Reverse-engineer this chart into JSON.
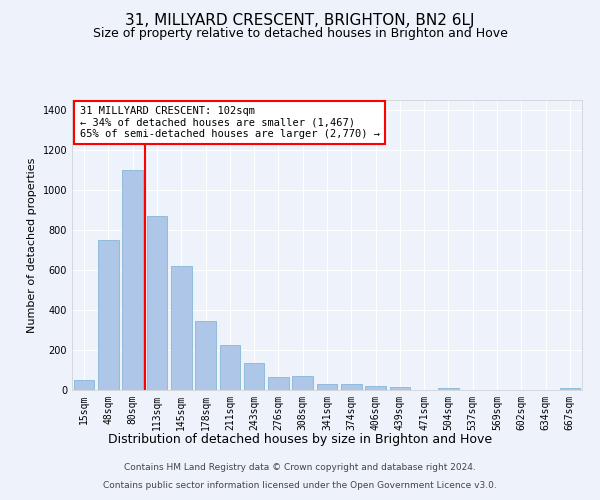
{
  "title": "31, MILLYARD CRESCENT, BRIGHTON, BN2 6LJ",
  "subtitle": "Size of property relative to detached houses in Brighton and Hove",
  "xlabel": "Distribution of detached houses by size in Brighton and Hove",
  "ylabel": "Number of detached properties",
  "footer_line1": "Contains HM Land Registry data © Crown copyright and database right 2024.",
  "footer_line2": "Contains public sector information licensed under the Open Government Licence v3.0.",
  "annotation_title": "31 MILLYARD CRESCENT: 102sqm",
  "annotation_line2": "← 34% of detached houses are smaller (1,467)",
  "annotation_line3": "65% of semi-detached houses are larger (2,770) →",
  "bar_labels": [
    "15sqm",
    "48sqm",
    "80sqm",
    "113sqm",
    "145sqm",
    "178sqm",
    "211sqm",
    "243sqm",
    "276sqm",
    "308sqm",
    "341sqm",
    "374sqm",
    "406sqm",
    "439sqm",
    "471sqm",
    "504sqm",
    "537sqm",
    "569sqm",
    "602sqm",
    "634sqm",
    "667sqm"
  ],
  "bar_values": [
    50,
    750,
    1100,
    870,
    620,
    345,
    225,
    135,
    65,
    70,
    30,
    30,
    20,
    15,
    0,
    12,
    0,
    0,
    0,
    0,
    12
  ],
  "bar_color": "#aec6e8",
  "bar_edge_color": "#7aafd4",
  "vline_x_index": 2.5,
  "vline_color": "red",
  "annotation_box_color": "white",
  "annotation_box_edge_color": "red",
  "background_color": "#eef2fb",
  "ylim": [
    0,
    1450
  ],
  "yticks": [
    0,
    200,
    400,
    600,
    800,
    1000,
    1200,
    1400
  ],
  "title_fontsize": 11,
  "subtitle_fontsize": 9,
  "xlabel_fontsize": 9,
  "ylabel_fontsize": 8,
  "tick_fontsize": 7,
  "annotation_fontsize": 7.5,
  "footer_fontsize": 6.5
}
